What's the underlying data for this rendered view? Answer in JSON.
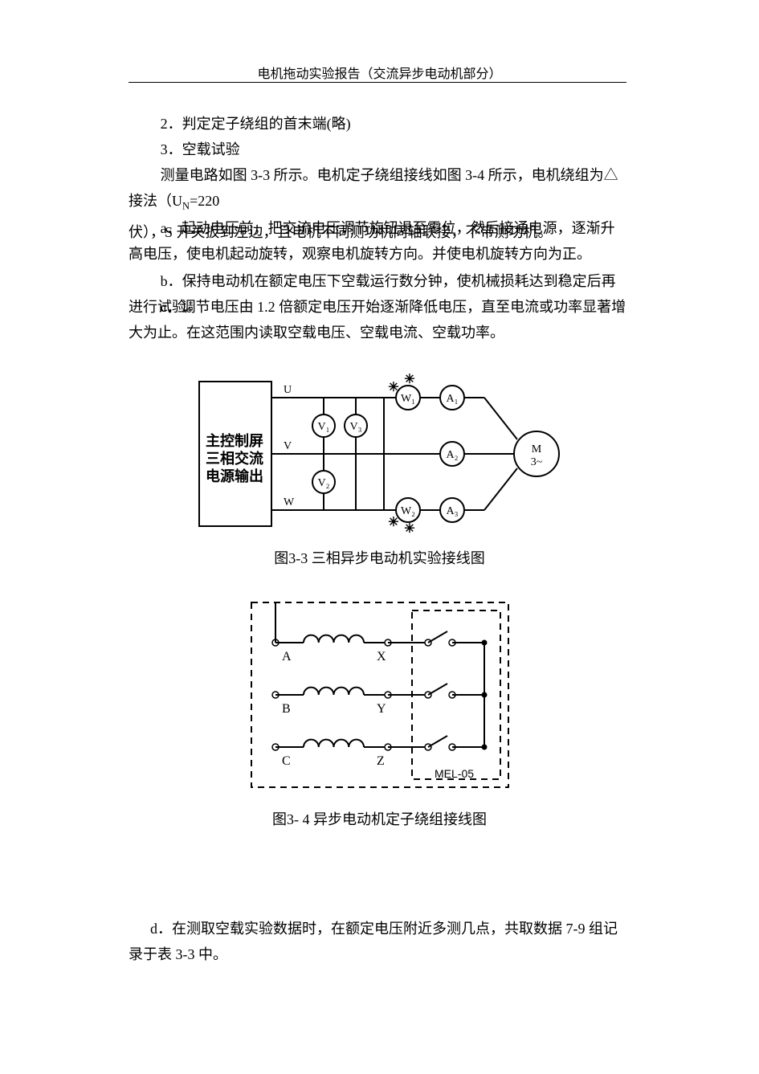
{
  "header": "电机拖动实验报告（交流异步电动机部分）",
  "para_2": "2．判定定子绕组的首末端(略)",
  "para_3": "3．空载试验",
  "para_intro_a": "测量电路如图 3-3 所示。电机定子绕组接线如图 3-4 所示，电机绕组为△接法（U",
  "para_intro_sub": "N",
  "para_intro_b": "=220",
  "para_intro_c": "伏），S 开关扳到左边，且电机不同测功机同轴联接，不带测功机。",
  "para_a": "a．起动电压前，把交流电压调节旋钮退至零位，然后接通电源，逐渐升高电压，使电机起动旋转，观察电机旋转方向。并使电机旋转方向为正。",
  "para_b": "b．保持电动机在额定电压下空载运行数分钟，使机械损耗达到稳定后再进行试验。",
  "para_c": "c．调节电压由 1.2 倍额定电压开始逐渐降低电压，直至电流或功率显著增大为止。在这范围内读取空载电压、空载电流、空载功率。",
  "para_d": "d．在测取空载实验数据时，在额定电压附近多测几点，共取数据 7-9 组记录于表 3-3 中。",
  "fig1": {
    "caption": "图3-3 三相异步电动机实验接线图",
    "box_line1": "主控制屏",
    "box_line2": "三相交流",
    "box_line3": "电源输出",
    "label_U": "U",
    "label_V": "V",
    "label_W": "W",
    "meter_V1": "V₁",
    "meter_V2": "V₂",
    "meter_V3": "V₃",
    "meter_W1": "W₁",
    "meter_W2": "W₂",
    "meter_A1": "A₁",
    "meter_A2": "A₂",
    "meter_A3": "A₃",
    "motor_top": "M",
    "motor_bot": "3~",
    "stroke": "#000000",
    "stroke_width": 2,
    "font_size": 14
  },
  "fig2": {
    "caption": "图3- 4  异步电动机定子绕组接线图",
    "label_A": "A",
    "label_B": "B",
    "label_C": "C",
    "label_X": "X",
    "label_Y": "Y",
    "label_Z": "Z",
    "label_box": "MEL-05",
    "stroke": "#000000",
    "stroke_width": 2,
    "dash": "8 6",
    "font_size": 16
  }
}
